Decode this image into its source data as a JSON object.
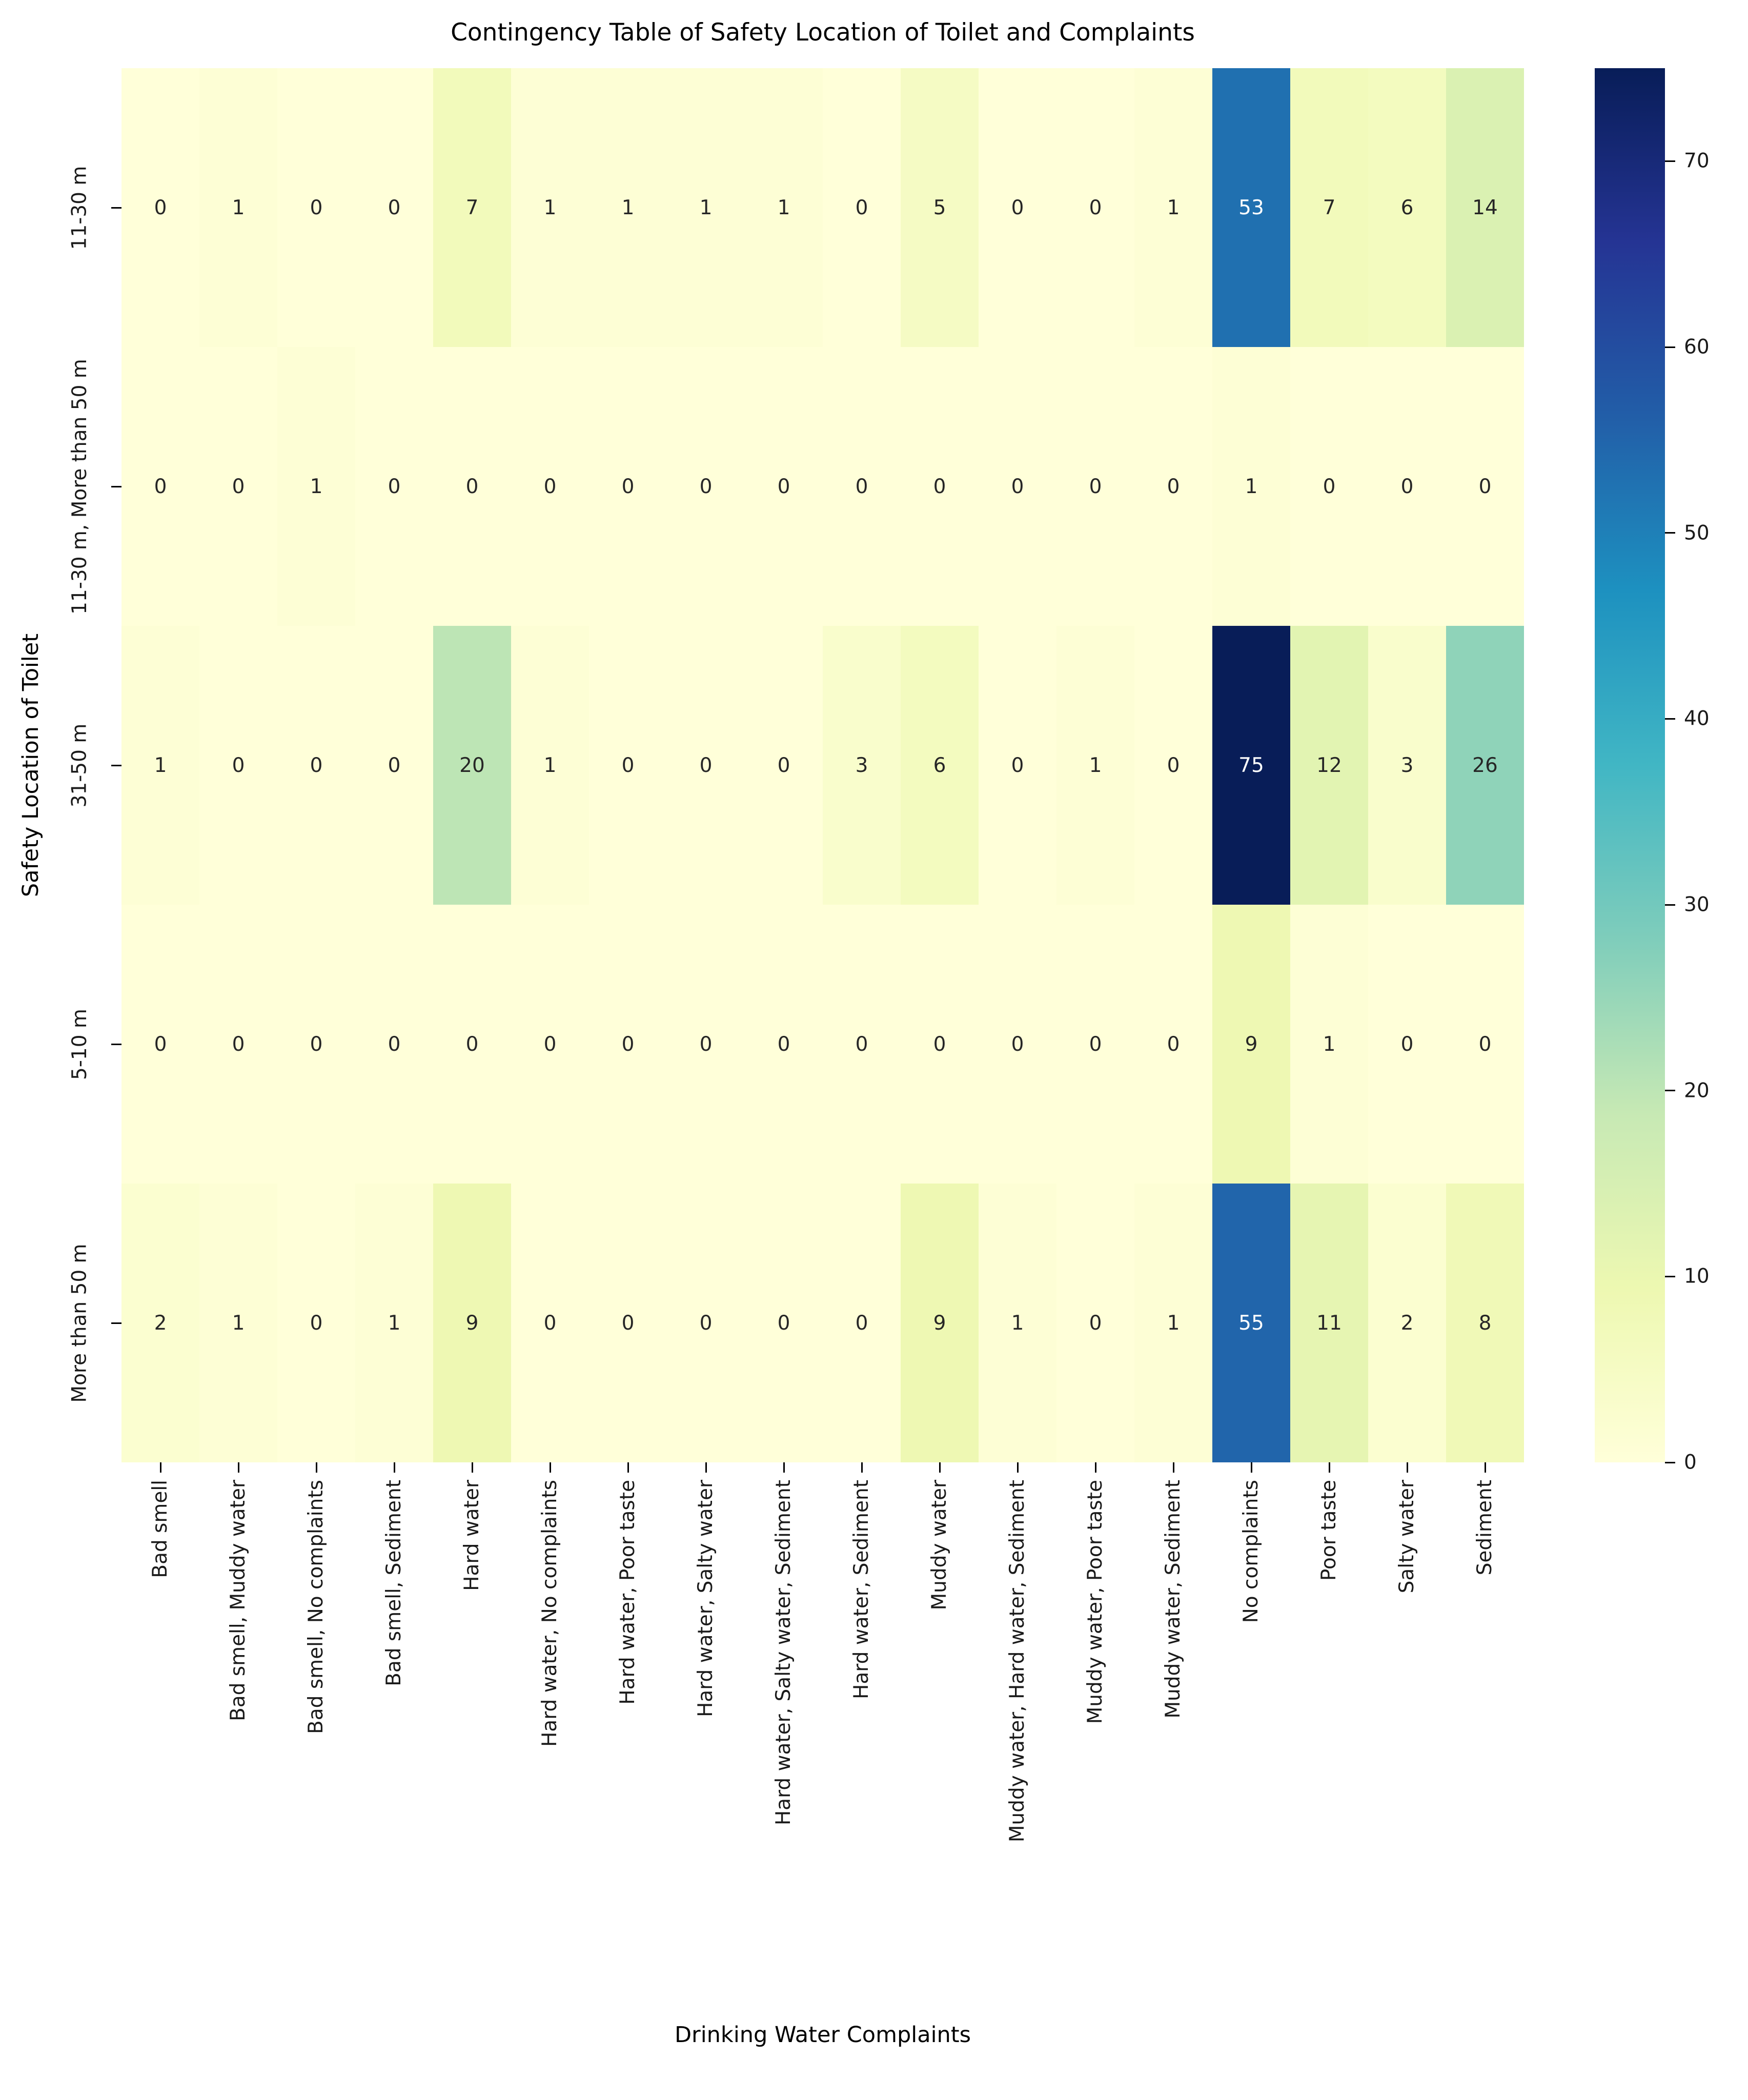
{
  "chart_data": {
    "type": "heatmap",
    "title": "Contingency Table of Safety Location of Toilet and Complaints",
    "xlabel": "Drinking Water Complaints",
    "ylabel": "Safety Location of Toilet",
    "x_categories": [
      "Bad smell",
      "Bad smell, Muddy water",
      "Bad smell, No complaints",
      "Bad smell, Sediment",
      "Hard water",
      "Hard water, No complaints",
      "Hard water, Poor taste",
      "Hard water, Salty water",
      "Hard water, Salty water, Sediment",
      "Hard water, Sediment",
      "Muddy water",
      "Muddy water, Hard water, Sediment",
      "Muddy water, Poor taste",
      "Muddy water, Sediment",
      "No complaints",
      "Poor taste",
      "Salty water",
      "Sediment"
    ],
    "y_categories": [
      "11-30 m",
      "11-30 m, More than 50 m",
      "31-50 m",
      "5-10 m",
      "More than 50 m"
    ],
    "values": [
      [
        0,
        1,
        0,
        0,
        7,
        1,
        1,
        1,
        1,
        0,
        5,
        0,
        0,
        1,
        53,
        7,
        6,
        14
      ],
      [
        0,
        0,
        1,
        0,
        0,
        0,
        0,
        0,
        0,
        0,
        0,
        0,
        0,
        0,
        1,
        0,
        0,
        0
      ],
      [
        1,
        0,
        0,
        0,
        20,
        1,
        0,
        0,
        0,
        3,
        6,
        0,
        1,
        0,
        75,
        12,
        3,
        26
      ],
      [
        0,
        0,
        0,
        0,
        0,
        0,
        0,
        0,
        0,
        0,
        0,
        0,
        0,
        0,
        9,
        1,
        0,
        0
      ],
      [
        2,
        1,
        0,
        1,
        9,
        0,
        0,
        0,
        0,
        0,
        9,
        1,
        0,
        1,
        55,
        11,
        2,
        8
      ]
    ],
    "vmin": 0,
    "vmax": 75,
    "colormap": "YlGnBu",
    "colormap_colors": [
      "#ffffd9",
      "#edf8b1",
      "#c7e9b4",
      "#7fcdbb",
      "#41b6c4",
      "#1d91c0",
      "#225ea8",
      "#253494",
      "#081d58"
    ],
    "annotation_dark_text": "#262626",
    "annotation_light_text": "#ffffff",
    "colorbar_ticks": [
      0,
      10,
      20,
      30,
      40,
      50,
      60,
      70
    ],
    "colorbar_position": "right",
    "grid": false,
    "annotations": true
  }
}
